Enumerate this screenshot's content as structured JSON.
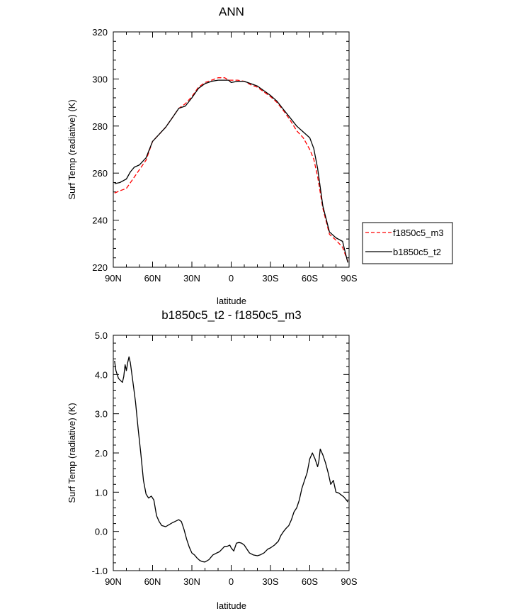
{
  "chart_data": [
    {
      "type": "line",
      "title": "ANN",
      "xlabel": "latitude",
      "ylabel": "Surf Temp (radiative) (K)",
      "xlim": [
        90,
        -90
      ],
      "ylim": [
        220,
        320
      ],
      "xtick_values": [
        90,
        60,
        30,
        0,
        -30,
        -60,
        -90
      ],
      "xtick_labels": [
        "90N",
        "60N",
        "30N",
        "0",
        "30S",
        "60S",
        "90S"
      ],
      "ytick_values": [
        220,
        240,
        260,
        280,
        300,
        320
      ],
      "ytick_labels": [
        "220",
        "240",
        "260",
        "280",
        "300",
        "320"
      ],
      "legend_position": "right",
      "series": [
        {
          "name": "f1850c5_m3",
          "color": "#ff0000",
          "dash": "dashed",
          "x": [
            89,
            85,
            80,
            75,
            70,
            65,
            60,
            55,
            50,
            45,
            40,
            35,
            30,
            25,
            20,
            15,
            10,
            5,
            2,
            0,
            -5,
            -10,
            -15,
            -20,
            -25,
            -30,
            -35,
            -40,
            -45,
            -50,
            -55,
            -60,
            -63,
            -66,
            -70,
            -75,
            -80,
            -85,
            -89
          ],
          "y": [
            251.5,
            252.5,
            253.5,
            257.5,
            261.5,
            265.5,
            273.5,
            276.5,
            279.5,
            283.5,
            287.5,
            289.5,
            292.5,
            296.5,
            298.5,
            299.5,
            300.5,
            300.5,
            299.5,
            299.5,
            299.5,
            299.0,
            297.5,
            296.5,
            294.5,
            292.5,
            290.0,
            286.5,
            282.5,
            278.0,
            275.0,
            270.0,
            266.0,
            258.5,
            245.0,
            234.0,
            231.5,
            228.5,
            222.5
          ]
        },
        {
          "name": "b1850c5_t2",
          "color": "#000000",
          "dash": "solid",
          "x": [
            89,
            85,
            80,
            77,
            74,
            70,
            65,
            60,
            55,
            50,
            45,
            40,
            35,
            30,
            25,
            20,
            15,
            10,
            5,
            2,
            0,
            -5,
            -10,
            -15,
            -20,
            -25,
            -30,
            -35,
            -40,
            -45,
            -50,
            -55,
            -60,
            -63,
            -66,
            -70,
            -75,
            -80,
            -85,
            -89
          ],
          "y": [
            255.5,
            256.0,
            257.5,
            260.5,
            262.5,
            263.5,
            266.5,
            273.5,
            276.5,
            279.5,
            283.5,
            287.5,
            288.5,
            292.0,
            296.0,
            298.0,
            299.0,
            299.5,
            299.5,
            299.5,
            298.5,
            299.0,
            299.0,
            298.0,
            297.0,
            295.0,
            293.0,
            290.5,
            287.0,
            283.5,
            280.0,
            277.5,
            275.0,
            270.5,
            262.0,
            246.0,
            235.0,
            232.5,
            231.0,
            222.0
          ]
        }
      ]
    },
    {
      "type": "line",
      "title": "b1850c5_t2 - f1850c5_m3",
      "xlabel": "latitude",
      "ylabel": "Surf Temp (radiative) (K)",
      "xlim": [
        90,
        -90
      ],
      "ylim": [
        -1.0,
        5.0
      ],
      "xtick_values": [
        90,
        60,
        30,
        0,
        -30,
        -60,
        -90
      ],
      "xtick_labels": [
        "90N",
        "60N",
        "30N",
        "0",
        "30S",
        "60S",
        "90S"
      ],
      "ytick_values": [
        -1,
        0,
        1,
        2,
        3,
        4,
        5
      ],
      "ytick_labels": [
        "-1.0",
        "0.0",
        "1.0",
        "2.0",
        "3.0",
        "4.0",
        "5.0"
      ],
      "series": [
        {
          "name": "b1850c5_t2 - f1850c5_m3",
          "color": "#000000",
          "dash": "solid",
          "x": [
            89,
            88,
            86,
            83,
            82,
            81,
            80,
            79,
            78,
            77,
            75,
            73,
            71,
            69,
            67,
            65,
            63,
            61,
            59,
            57,
            55,
            53,
            50,
            47,
            45,
            43,
            40,
            38,
            36,
            34,
            32,
            30,
            28,
            26,
            24,
            22,
            20,
            17,
            14,
            11,
            9,
            7,
            5,
            3,
            1,
            0,
            -2,
            -4,
            -6,
            -8,
            -10,
            -12,
            -14,
            -17,
            -20,
            -22,
            -25,
            -28,
            -30,
            -33,
            -36,
            -38,
            -40,
            -42,
            -44,
            -46,
            -48,
            -50,
            -52,
            -54,
            -56,
            -58,
            -60,
            -62,
            -64,
            -66,
            -67,
            -68,
            -70,
            -72,
            -74,
            -75,
            -76,
            -78,
            -80,
            -82,
            -84,
            -86,
            -88,
            -89
          ],
          "y": [
            4.35,
            4.1,
            3.9,
            3.8,
            3.95,
            4.25,
            4.1,
            4.3,
            4.45,
            4.3,
            3.8,
            3.3,
            2.6,
            2.0,
            1.3,
            0.95,
            0.85,
            0.9,
            0.8,
            0.4,
            0.25,
            0.15,
            0.12,
            0.18,
            0.22,
            0.25,
            0.3,
            0.25,
            0.05,
            -0.2,
            -0.4,
            -0.55,
            -0.6,
            -0.68,
            -0.74,
            -0.77,
            -0.78,
            -0.72,
            -0.6,
            -0.55,
            -0.52,
            -0.45,
            -0.38,
            -0.38,
            -0.35,
            -0.42,
            -0.5,
            -0.3,
            -0.28,
            -0.3,
            -0.35,
            -0.45,
            -0.55,
            -0.6,
            -0.62,
            -0.6,
            -0.55,
            -0.45,
            -0.42,
            -0.35,
            -0.25,
            -0.1,
            0.0,
            0.08,
            0.15,
            0.3,
            0.5,
            0.6,
            0.8,
            1.1,
            1.3,
            1.5,
            1.85,
            2.0,
            1.85,
            1.65,
            1.8,
            2.1,
            1.95,
            1.75,
            1.5,
            1.35,
            1.2,
            1.3,
            1.0,
            0.98,
            0.93,
            0.88,
            0.8,
            0.75
          ]
        }
      ]
    }
  ]
}
